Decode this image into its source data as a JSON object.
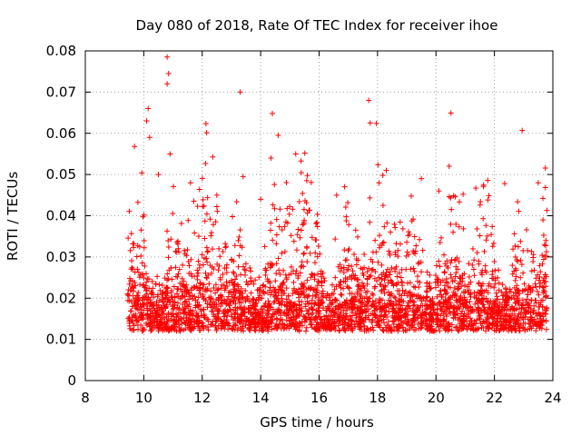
{
  "chart_data": {
    "type": "scatter",
    "title": "Day 080 of 2018, Rate Of TEC Index for receiver ihoe",
    "xlabel": "GPS time / hours",
    "ylabel": "ROTI / TECUs",
    "xlim": [
      8,
      24
    ],
    "ylim": [
      0,
      0.08
    ],
    "xticks": [
      "8",
      "10",
      "12",
      "14",
      "16",
      "18",
      "20",
      "22",
      "24"
    ],
    "yticks": [
      "0",
      "0.01",
      "0.02",
      "0.03",
      "0.04",
      "0.05",
      "0.06",
      "0.07",
      "0.08"
    ],
    "grid": true,
    "marker": "+",
    "series": [
      {
        "name": "ROTI",
        "color": "#ff0000",
        "x_range": [
          9.45,
          23.8
        ],
        "baseline": 0.012,
        "notable_points": [
          [
            10.8,
            0.0785
          ],
          [
            10.85,
            0.0745
          ],
          [
            10.8,
            0.072
          ],
          [
            13.3,
            0.07
          ],
          [
            10.15,
            0.066
          ],
          [
            10.1,
            0.063
          ],
          [
            14.4,
            0.0648
          ],
          [
            17.7,
            0.068
          ],
          [
            17.75,
            0.0625
          ],
          [
            22.95,
            0.0607
          ],
          [
            10.2,
            0.059
          ],
          [
            14.6,
            0.0595
          ],
          [
            10.9,
            0.055
          ],
          [
            15.2,
            0.055
          ],
          [
            20.45,
            0.052
          ],
          [
            18.3,
            0.051
          ],
          [
            10.5,
            0.05
          ],
          [
            13.4,
            0.0495
          ],
          [
            19.5,
            0.049
          ],
          [
            11.6,
            0.048
          ],
          [
            22.35,
            0.0478
          ],
          [
            23.5,
            0.048
          ],
          [
            12.5,
            0.045
          ],
          [
            16.6,
            0.045
          ],
          [
            20.1,
            0.046
          ],
          [
            14.0,
            0.044
          ]
        ]
      }
    ]
  }
}
